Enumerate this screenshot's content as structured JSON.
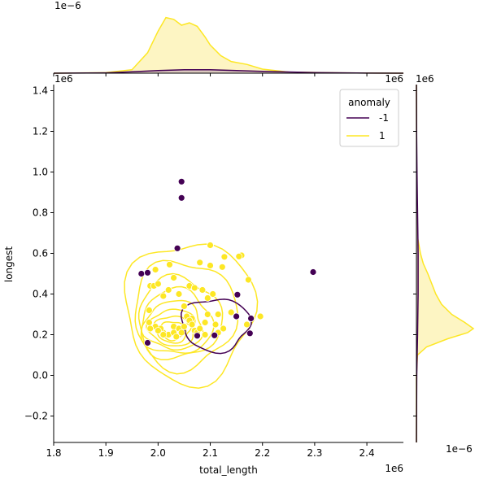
{
  "chart_data": {
    "type": "scatter",
    "subtype": "jointplot with KDE contours and marginal KDE",
    "xlabel": "total_length",
    "ylabel": "longest",
    "x_offset_label": "1e6",
    "y_offset_label": "1e6",
    "top_marginal_offset_label": "1e−6",
    "right_marginal_offset_label": "1e−6",
    "xlim": [
      1.8,
      2.47
    ],
    "ylim": [
      -0.33,
      1.43
    ],
    "xticks": [
      "1.8",
      "1.9",
      "2.0",
      "2.1",
      "2.2",
      "2.3",
      "2.4"
    ],
    "yticks": [
      "−0.2",
      "0.0",
      "0.2",
      "0.4",
      "0.6",
      "0.8",
      "1.0",
      "1.2",
      "1.4"
    ],
    "grid": false,
    "legend": {
      "title": "anomaly",
      "placement": "top-right",
      "entries": [
        {
          "label": "-1",
          "color": "#440154"
        },
        {
          "label": "1",
          "color": "#fde725"
        }
      ]
    },
    "series": [
      {
        "name": "-1",
        "color": "#440154",
        "x": [
          2.045,
          2.045,
          2.037,
          1.968,
          1.98,
          1.98,
          2.297,
          2.152,
          2.15,
          2.178,
          2.176,
          2.075,
          2.108
        ],
        "y": [
          0.953,
          0.873,
          0.625,
          0.5,
          0.505,
          0.16,
          0.508,
          0.397,
          0.29,
          0.28,
          0.207,
          0.195,
          0.197
        ]
      },
      {
        "name": "1",
        "color": "#fde725",
        "x": [
          2.1,
          2.08,
          2.1,
          2.16,
          2.155,
          2.173,
          2.196,
          2.17,
          2.127,
          2.123,
          2.022,
          1.995,
          1.985,
          1.983,
          1.983,
          1.992,
          2.0,
          2.01,
          2.02,
          2.03,
          2.04,
          2.05,
          2.06,
          2.07,
          2.085,
          2.095,
          2.105,
          2.115,
          2.065,
          2.055,
          2.03,
          2.04,
          2.06,
          2.07,
          2.01,
          2.005,
          1.995,
          2.02,
          2.045,
          2.06,
          2.09,
          2.095,
          2.11,
          2.125,
          2.14,
          1.985,
          2.0,
          2.01,
          2.03,
          2.035,
          2.05,
          2.075,
          2.08,
          2.09,
          2.115,
          2.065
        ],
        "y": [
          0.64,
          0.555,
          0.54,
          0.59,
          0.585,
          0.47,
          0.29,
          0.25,
          0.583,
          0.533,
          0.545,
          0.52,
          0.44,
          0.32,
          0.26,
          0.44,
          0.45,
          0.39,
          0.42,
          0.48,
          0.4,
          0.34,
          0.44,
          0.43,
          0.42,
          0.38,
          0.4,
          0.3,
          0.28,
          0.29,
          0.24,
          0.23,
          0.26,
          0.22,
          0.21,
          0.23,
          0.24,
          0.2,
          0.21,
          0.27,
          0.26,
          0.3,
          0.25,
          0.23,
          0.31,
          0.23,
          0.22,
          0.2,
          0.21,
          0.19,
          0.24,
          0.21,
          0.23,
          0.2,
          0.21,
          0.25
        ]
      }
    ],
    "kde": [
      {
        "name": "1",
        "color": "#fde725",
        "center": [
          2.04,
          0.3
        ],
        "levels": [
          {
            "rx": 0.123,
            "ry": 0.345,
            "shift": [
              0.02,
              0.015
            ]
          },
          {
            "rx": 0.098,
            "ry": 0.265,
            "shift": [
              0.01,
              0.0
            ]
          },
          {
            "rx": 0.08,
            "ry": 0.2,
            "shift": [
              0.0,
              -0.02
            ]
          },
          {
            "rx": 0.068,
            "ry": 0.16,
            "shift": [
              -0.005,
              -0.04
            ]
          },
          {
            "rx": 0.056,
            "ry": 0.12,
            "shift": [
              -0.01,
              -0.055
            ]
          },
          {
            "rx": 0.045,
            "ry": 0.09,
            "shift": [
              -0.012,
              -0.065
            ]
          },
          {
            "rx": 0.034,
            "ry": 0.065,
            "shift": [
              -0.012,
              -0.072
            ]
          },
          {
            "rx": 0.024,
            "ry": 0.045,
            "shift": [
              -0.012,
              -0.08
            ]
          }
        ]
      },
      {
        "name": "-1",
        "color": "#440154",
        "center": [
          2.11,
          0.25
        ],
        "levels": [
          {
            "rx": 0.065,
            "ry": 0.13,
            "shift": [
              0.0,
              0.0
            ]
          }
        ]
      }
    ],
    "marginal_x": {
      "series": [
        {
          "name": "1",
          "color": "#fde725",
          "fill": "#fdf3b8",
          "x": [
            1.8,
            1.9,
            1.95,
            1.98,
            2.0,
            2.015,
            2.03,
            2.045,
            2.06,
            2.075,
            2.09,
            2.1,
            2.12,
            2.14,
            2.17,
            2.2,
            2.25,
            2.35,
            2.47
          ],
          "density": [
            0.0,
            0.01,
            0.06,
            0.35,
            0.72,
            0.95,
            0.92,
            0.82,
            0.86,
            0.8,
            0.62,
            0.48,
            0.3,
            0.2,
            0.15,
            0.07,
            0.02,
            0.005,
            0.0
          ]
        },
        {
          "name": "-1",
          "color": "#440154",
          "fill": "#d3c0bd",
          "x": [
            1.8,
            1.9,
            1.95,
            2.0,
            2.05,
            2.1,
            2.15,
            2.2,
            2.3,
            2.4,
            2.47
          ],
          "density": [
            0.0,
            0.005,
            0.025,
            0.045,
            0.06,
            0.06,
            0.045,
            0.03,
            0.01,
            0.002,
            0.0
          ]
        }
      ]
    },
    "marginal_y": {
      "series": [
        {
          "name": "1",
          "color": "#fde725",
          "fill": "#fdf3b8",
          "y": [
            -0.33,
            0.0,
            0.1,
            0.14,
            0.18,
            0.21,
            0.23,
            0.26,
            0.3,
            0.35,
            0.4,
            0.45,
            0.5,
            0.55,
            0.6,
            0.68,
            0.8,
            1.43
          ],
          "density": [
            0.0,
            0.0,
            0.02,
            0.18,
            0.55,
            0.9,
            1.0,
            0.85,
            0.62,
            0.44,
            0.34,
            0.27,
            0.2,
            0.12,
            0.07,
            0.02,
            0.005,
            0.0
          ]
        },
        {
          "name": "-1",
          "color": "#440154",
          "fill": "#d3c0bd",
          "y": [
            -0.33,
            0.0,
            0.2,
            0.4,
            0.6,
            0.8,
            1.0,
            1.2,
            1.43
          ],
          "density": [
            0.0,
            0.005,
            0.02,
            0.03,
            0.03,
            0.02,
            0.01,
            0.003,
            0.0
          ]
        }
      ]
    }
  }
}
